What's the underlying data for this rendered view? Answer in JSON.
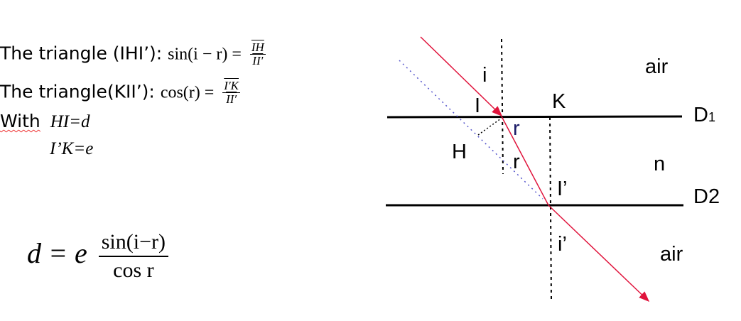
{
  "text": {
    "line1_label": "The triangle (IHI’):",
    "line1_lhs": "sin(i − r) =",
    "line1_num": "IH",
    "line1_den": "II′",
    "line2_label": "The triangle(KII’):",
    "line2_lhs": "cos(r) =",
    "line2_num": "I′K",
    "line2_den": "II′",
    "with_label": "With",
    "with_eq1": "HI=d",
    "with_eq2": "I’K=e",
    "result_lhs": "d = e",
    "result_num": "sin(i−r)",
    "result_den": "cos r"
  },
  "diagram": {
    "labels": {
      "i": "i",
      "I": "I",
      "K": "K",
      "D1": "D",
      "D1_sub": "1",
      "r_top": "r",
      "H": "H",
      "r_bottom": "r",
      "n": "n",
      "I_prime": "I’",
      "D2": "D2",
      "i_prime": "i’",
      "air_top": "air",
      "air_bottom": "air"
    },
    "colors": {
      "ray": "#e0143c",
      "dotted_ray": "#5555cc",
      "r_top": "#1a1a66",
      "lines": "#000000"
    }
  }
}
